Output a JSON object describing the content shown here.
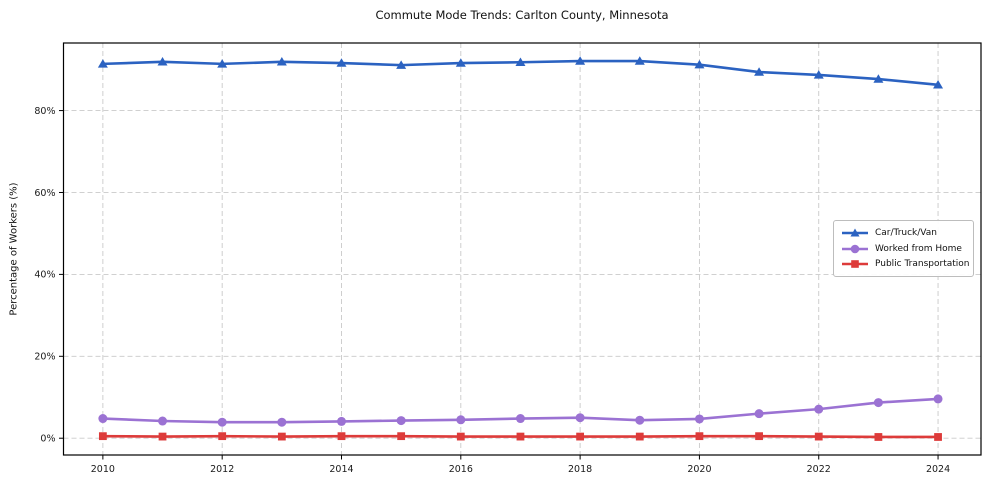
{
  "chart_data": {
    "type": "line",
    "title": "Commute Mode Trends: Carlton County, Minnesota",
    "xlabel": "",
    "ylabel": "Percentage of Workers (%)",
    "x": [
      2010,
      2011,
      2012,
      2013,
      2014,
      2015,
      2016,
      2017,
      2018,
      2019,
      2020,
      2021,
      2022,
      2023,
      2024
    ],
    "series": [
      {
        "name": "Car/Truck/Van",
        "color": "#2b62c1",
        "marker": "triangle",
        "values": [
          91.4,
          91.9,
          91.4,
          91.9,
          91.6,
          91.1,
          91.6,
          91.8,
          92.1,
          92.1,
          91.2,
          89.4,
          88.7,
          87.7,
          86.3
        ]
      },
      {
        "name": "Worked from Home",
        "color": "#9b72d3",
        "marker": "circle",
        "values": [
          4.8,
          4.2,
          3.9,
          3.9,
          4.1,
          4.3,
          4.5,
          4.8,
          5.0,
          4.4,
          4.7,
          6.0,
          7.1,
          8.7,
          9.6
        ]
      },
      {
        "name": "Public Transportation",
        "color": "#dd3b3a",
        "marker": "square",
        "values": [
          0.5,
          0.4,
          0.5,
          0.4,
          0.5,
          0.5,
          0.4,
          0.4,
          0.4,
          0.4,
          0.5,
          0.5,
          0.4,
          0.3,
          0.3
        ]
      }
    ],
    "xticks": [
      2010,
      2012,
      2014,
      2016,
      2018,
      2020,
      2022,
      2024
    ],
    "xtick_labels": [
      "2010",
      "2012",
      "2014",
      "2016",
      "2018",
      "2020",
      "2022",
      "2024"
    ],
    "yticks": [
      0,
      20,
      40,
      60,
      80
    ],
    "ytick_labels": [
      "0%",
      "20%",
      "40%",
      "60%",
      "80%"
    ],
    "xlim": [
      2009.34,
      2024.72
    ],
    "ylim": [
      -4.1,
      96.5
    ],
    "grid": true,
    "grid_color": "#c9c9c9",
    "grid_style": "dashed",
    "axis_color": "#000000",
    "tick_label_color": "#1a1a1a",
    "legend_position": "center-right"
  }
}
